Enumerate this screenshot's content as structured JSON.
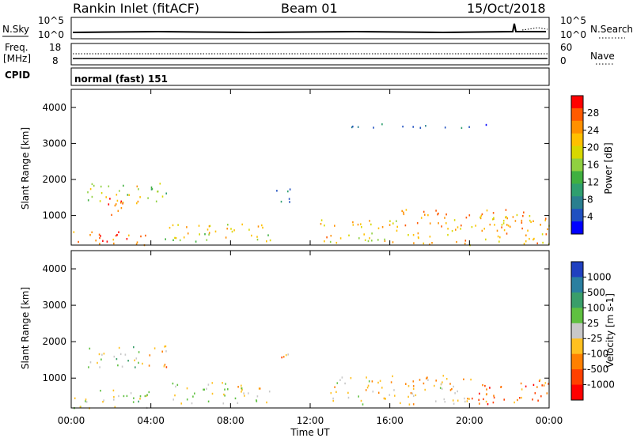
{
  "header": {
    "station": "Rankin Inlet (fitACF)",
    "beam": "Beam 01",
    "date": "15/Oct/2018"
  },
  "panels": {
    "nsky": {
      "left_label": "N.Sky",
      "right_label": "N.Search",
      "left_ticks": [
        "10^5",
        "10^0"
      ],
      "right_ticks": [
        "10^5",
        "10^0"
      ]
    },
    "freq": {
      "left_label_line1": "Freq.",
      "left_label_line2": "[MHz]",
      "right_label": "Nave",
      "left_ticks": [
        "18",
        "8"
      ],
      "right_ticks": [
        "60",
        "0"
      ]
    },
    "cpid": {
      "label": "CPID",
      "text": "normal (fast) 151"
    }
  },
  "colorbars": {
    "power": {
      "title": "Power [dB]",
      "ticks": [
        "28",
        "24",
        "20",
        "16",
        "12",
        "8",
        "4"
      ],
      "colors": [
        "#ff0000",
        "#ff5a00",
        "#ff9000",
        "#ffc000",
        "#d8d800",
        "#90d040",
        "#40b040",
        "#2f9f6f",
        "#2a7f8f",
        "#2050c0",
        "#0000ff"
      ]
    },
    "velocity": {
      "title": "Velocity [m s-1]",
      "ticks": [
        "1000",
        "500",
        "100",
        "25",
        "-25",
        "-100",
        "-500",
        "-1000"
      ],
      "colors": [
        "#2040c0",
        "#2a7fa0",
        "#3a9e6a",
        "#5fc040",
        "#c8c8c8",
        "#ffc020",
        "#ff8000",
        "#ff4000",
        "#ff0000"
      ]
    }
  },
  "axes": {
    "ylabel": "Slant Range [km]",
    "yticks": [
      "4000",
      "3000",
      "2000",
      "1000"
    ],
    "xlabel": "Time UT",
    "xticks": [
      "00:00",
      "04:00",
      "08:00",
      "12:00",
      "16:00",
      "20:00",
      "00:00"
    ]
  },
  "chart_data": [
    {
      "type": "heatmap",
      "title": "",
      "quantity": "Power",
      "xlabel": "",
      "ylabel": "Slant Range [km]",
      "xlim": [
        "00:00",
        "24:00"
      ],
      "ylim": [
        180,
        4500
      ],
      "colorbar_range": [
        0,
        30
      ],
      "blobs": [
        {
          "t0": 0.1,
          "t1": 4.0,
          "r0": 180,
          "r1": 600,
          "v": 24
        },
        {
          "t0": 0.8,
          "t1": 3.6,
          "r0": 1300,
          "r1": 1900,
          "v": 18
        },
        {
          "t0": 1.6,
          "t1": 2.6,
          "r0": 900,
          "r1": 1500,
          "v": 26
        },
        {
          "t0": 3.8,
          "t1": 4.8,
          "r0": 1300,
          "r1": 2000,
          "v": 14
        },
        {
          "t0": 4.5,
          "t1": 10.0,
          "r0": 300,
          "r1": 800,
          "v": 18
        },
        {
          "t0": 10.2,
          "t1": 11.0,
          "r0": 1400,
          "r1": 1900,
          "v": 8
        },
        {
          "t0": 12.5,
          "t1": 16.5,
          "r0": 250,
          "r1": 900,
          "v": 20
        },
        {
          "t0": 16.5,
          "t1": 24.0,
          "r0": 200,
          "r1": 1200,
          "v": 22
        },
        {
          "t0": 14.0,
          "t1": 22.5,
          "r0": 3450,
          "r1": 3560,
          "v": 6
        }
      ]
    },
    {
      "type": "heatmap",
      "title": "",
      "quantity": "Velocity",
      "xlabel": "Time UT",
      "ylabel": "Slant Range [km]",
      "xlim": [
        "00:00",
        "24:00"
      ],
      "ylim": [
        180,
        4500
      ],
      "colorbar_range": [
        -1000,
        1000
      ],
      "blobs": [
        {
          "t0": 0.1,
          "t1": 4.0,
          "r0": 180,
          "r1": 700,
          "v": 100
        },
        {
          "t0": 0.8,
          "t1": 3.6,
          "r0": 1300,
          "r1": 1900,
          "v": 100
        },
        {
          "t0": 3.8,
          "t1": 4.8,
          "r0": 1300,
          "r1": 2000,
          "v": -300
        },
        {
          "t0": 5.0,
          "t1": 10.0,
          "r0": 300,
          "r1": 900,
          "v": 0
        },
        {
          "t0": 10.3,
          "t1": 11.0,
          "r0": 1450,
          "r1": 1900,
          "v": -300
        },
        {
          "t0": 13.0,
          "t1": 20.0,
          "r0": 300,
          "r1": 1100,
          "v": -200
        },
        {
          "t0": 20.0,
          "t1": 24.0,
          "r0": 300,
          "r1": 1000,
          "v": -500
        }
      ]
    }
  ]
}
